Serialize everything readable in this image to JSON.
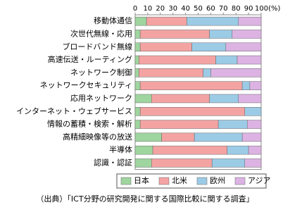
{
  "chart_data": {
    "type": "stacked-bar-horizontal",
    "categories": [
      "移動体通信",
      "次世代無線・応用",
      "ブロードバンド無線",
      "高速伝送・ルーティング",
      "ネットワーク制御",
      "ネットワークセキュリティ",
      "応用ネットワーク",
      "インターネット・ウェブサービス",
      "情報の蓄積・検索・解析",
      "高精細映像等の放送",
      "半導体",
      "認識・認証"
    ],
    "series": [
      {
        "name": "日本",
        "color": "#9fd59f",
        "values": [
          9,
          4,
          4,
          3,
          3,
          4,
          13,
          4,
          4,
          21,
          14,
          13
        ]
      },
      {
        "name": "北米",
        "color": "#f4a3a3",
        "values": [
          32,
          55,
          41,
          61,
          51,
          81,
          46,
          83,
          62,
          26,
          59,
          48
        ]
      },
      {
        "name": "欧州",
        "color": "#9ccbe6",
        "values": [
          41,
          18,
          27,
          17,
          6,
          6,
          23,
          13,
          23,
          38,
          17,
          26
        ]
      },
      {
        "name": "アジア",
        "color": "#dcb3e3",
        "values": [
          18,
          23,
          28,
          19,
          40,
          9,
          18,
          0,
          11,
          15,
          10,
          13
        ]
      }
    ],
    "xlim": [
      0,
      100
    ],
    "xticks": [
      0,
      10,
      20,
      30,
      40,
      50,
      60,
      70,
      80,
      90,
      {
        "value": 100,
        "label": "100(%)"
      }
    ],
    "legend": "bottom",
    "note": "（出典）「ICT分野の研究開発に関する国際比較に関する調査」"
  }
}
